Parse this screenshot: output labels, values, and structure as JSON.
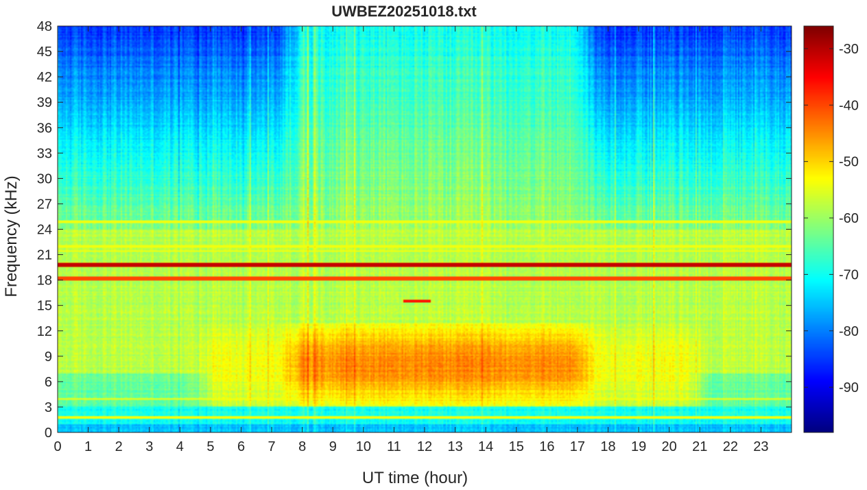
{
  "chart_data": {
    "type": "heatmap",
    "title": "UWBEZ20251018.txt",
    "xlabel": "UT time (hour)",
    "ylabel": "Frequency (kHz)",
    "xlim": [
      0,
      24
    ],
    "ylim": [
      0,
      48
    ],
    "x_ticks": [
      "0",
      "1",
      "2",
      "3",
      "4",
      "5",
      "6",
      "7",
      "8",
      "9",
      "10",
      "11",
      "12",
      "13",
      "14",
      "15",
      "16",
      "17",
      "18",
      "19",
      "20",
      "21",
      "22",
      "23"
    ],
    "y_ticks": [
      "0",
      "3",
      "6",
      "9",
      "12",
      "15",
      "18",
      "21",
      "24",
      "27",
      "30",
      "33",
      "36",
      "39",
      "42",
      "45",
      "48"
    ],
    "colormap": "jet",
    "colorbar": {
      "clim": [
        -98,
        -26
      ],
      "ticks": [
        "-90",
        "-80",
        "-70",
        "-60",
        "-50",
        "-40",
        "-30"
      ]
    },
    "features": {
      "strong_lines_khz": [
        19.8,
        18.2
      ],
      "lines_khz": [
        24.9,
        22.0,
        21.4,
        4.0,
        1.8
      ],
      "short_segment": {
        "t_start": 11.3,
        "t_end": 12.2,
        "freq_khz": 15.5
      },
      "broadband_enhancement": {
        "t_start": 8.3,
        "t_end": 17.7,
        "freq_range_khz": [
          3,
          13
        ],
        "peak_level": -45
      },
      "night_background_level": -85,
      "day_background_level": -68
    },
    "colors": {
      "text": "#262626",
      "axis": "#262626"
    }
  }
}
